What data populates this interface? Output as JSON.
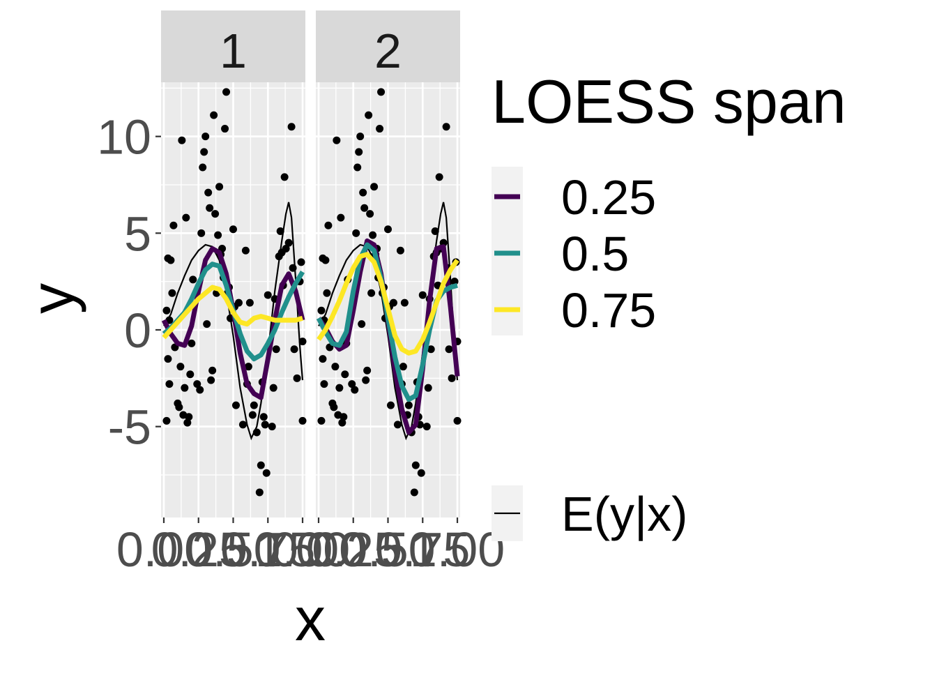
{
  "chart_data": {
    "type": "scatter",
    "title": "",
    "xlabel": "x",
    "ylabel": "y",
    "facets": [
      "1",
      "2"
    ],
    "xlim": [
      -0.02,
      1.02
    ],
    "ylim": [
      -9.7,
      12.8
    ],
    "x_ticks": [
      0,
      0.25,
      0.5,
      0.75,
      1
    ],
    "x_tick_labels": [
      "0.00",
      "0.25",
      "0.50",
      "0.75",
      "1.00"
    ],
    "y_ticks": [
      -5,
      0,
      5,
      10
    ],
    "y_tick_labels": [
      "-5",
      "0",
      "5",
      "10"
    ],
    "grid": true,
    "legend": {
      "position": "right",
      "title": "LOESS span",
      "colour_entries": [
        {
          "label": "0.25",
          "color": "#440154"
        },
        {
          "label": "0.5",
          "color": "#21908C"
        },
        {
          "label": "0.75",
          "color": "#FDE725"
        }
      ],
      "truth_entry": {
        "label": "E(y|x)",
        "color": "#000000"
      }
    },
    "points": [
      [
        0.02,
        -4.7
      ],
      [
        0.02,
        1.0
      ],
      [
        0.03,
        3.7
      ],
      [
        0.03,
        -1.5
      ],
      [
        0.04,
        0.5
      ],
      [
        0.04,
        -2.8
      ],
      [
        0.05,
        3.6
      ],
      [
        0.06,
        1.9
      ],
      [
        0.07,
        5.4
      ],
      [
        0.08,
        -0.9
      ],
      [
        0.1,
        -3.8
      ],
      [
        0.11,
        -4.0
      ],
      [
        0.12,
        -1.9
      ],
      [
        0.13,
        9.8
      ],
      [
        0.14,
        -4.4
      ],
      [
        0.15,
        -3.0
      ],
      [
        0.16,
        5.8
      ],
      [
        0.17,
        -4.8
      ],
      [
        0.18,
        -4.5
      ],
      [
        0.19,
        -2.3
      ],
      [
        0.2,
        -0.7
      ],
      [
        0.21,
        2.6
      ],
      [
        0.24,
        -2.8
      ],
      [
        0.26,
        -3.1
      ],
      [
        0.27,
        5.0
      ],
      [
        0.28,
        8.4
      ],
      [
        0.29,
        9.2
      ],
      [
        0.3,
        10.0
      ],
      [
        0.31,
        0.3
      ],
      [
        0.32,
        7.1
      ],
      [
        0.33,
        6.3
      ],
      [
        0.34,
        -2.6
      ],
      [
        0.35,
        -2.1
      ],
      [
        0.36,
        11.1
      ],
      [
        0.37,
        6.0
      ],
      [
        0.38,
        1.9
      ],
      [
        0.39,
        4.9
      ],
      [
        0.4,
        7.4
      ],
      [
        0.41,
        3.9
      ],
      [
        0.42,
        4.2
      ],
      [
        0.43,
        2.7
      ],
      [
        0.44,
        10.4
      ],
      [
        0.45,
        12.3
      ],
      [
        0.46,
        1.9
      ],
      [
        0.47,
        2.2
      ],
      [
        0.48,
        0.6
      ],
      [
        0.5,
        5.2
      ],
      [
        0.51,
        1.2
      ],
      [
        0.52,
        -3.9
      ],
      [
        0.54,
        1.4
      ],
      [
        0.57,
        -4.9
      ],
      [
        0.59,
        4.1
      ],
      [
        0.6,
        -2.8
      ],
      [
        0.61,
        -1.9
      ],
      [
        0.62,
        1.4
      ],
      [
        0.64,
        -4.4
      ],
      [
        0.65,
        -3.9
      ],
      [
        0.67,
        -5.3
      ],
      [
        0.69,
        -8.4
      ],
      [
        0.7,
        -7.0
      ],
      [
        0.71,
        -2.7
      ],
      [
        0.72,
        -4.5
      ],
      [
        0.73,
        -4.9
      ],
      [
        0.74,
        -7.4
      ],
      [
        0.75,
        1.8
      ],
      [
        0.78,
        -5.0
      ],
      [
        0.79,
        -3.0
      ],
      [
        0.8,
        1.6
      ],
      [
        0.81,
        -1.0
      ],
      [
        0.83,
        3.8
      ],
      [
        0.84,
        5.1
      ],
      [
        0.85,
        4.0
      ],
      [
        0.86,
        2.3
      ],
      [
        0.87,
        7.9
      ],
      [
        0.88,
        4.2
      ],
      [
        0.9,
        4.5
      ],
      [
        0.92,
        10.5
      ],
      [
        0.93,
        3.2
      ],
      [
        0.94,
        -1.0
      ],
      [
        0.96,
        -2.5
      ],
      [
        0.98,
        2.5
      ],
      [
        0.99,
        3.5
      ],
      [
        1.0,
        -0.6
      ],
      [
        1.0,
        -4.7
      ]
    ],
    "truth_curve": [
      [
        0,
        0.2
      ],
      [
        0.05,
        0.8
      ],
      [
        0.1,
        1.9
      ],
      [
        0.15,
        2.8
      ],
      [
        0.2,
        3.6
      ],
      [
        0.25,
        4.1
      ],
      [
        0.3,
        4.4
      ],
      [
        0.35,
        4.3
      ],
      [
        0.4,
        3.6
      ],
      [
        0.45,
        2.0
      ],
      [
        0.5,
        -0.3
      ],
      [
        0.55,
        -3.0
      ],
      [
        0.6,
        -4.9
      ],
      [
        0.63,
        -5.6
      ],
      [
        0.67,
        -5.0
      ],
      [
        0.7,
        -3.8
      ],
      [
        0.75,
        -1.2
      ],
      [
        0.8,
        2.0
      ],
      [
        0.85,
        4.6
      ],
      [
        0.88,
        6.0
      ],
      [
        0.9,
        6.6
      ],
      [
        0.92,
        5.8
      ],
      [
        0.95,
        2.6
      ],
      [
        0.98,
        -0.8
      ],
      [
        1.0,
        -2.6
      ]
    ],
    "series": [
      {
        "name": "0.25",
        "facet": "1",
        "x": [
          0,
          0.05,
          0.1,
          0.15,
          0.2,
          0.25,
          0.3,
          0.35,
          0.4,
          0.45,
          0.5,
          0.55,
          0.6,
          0.65,
          0.7,
          0.75,
          0.8,
          0.85,
          0.9,
          0.95,
          1.0
        ],
        "values": [
          0.5,
          -0.2,
          -0.7,
          -0.8,
          0.2,
          2.0,
          3.6,
          4.2,
          4.0,
          2.9,
          1.0,
          -1.2,
          -2.8,
          -3.3,
          -3.5,
          -1.5,
          0.5,
          2.3,
          2.9,
          2.0,
          0.5
        ]
      },
      {
        "name": "0.5",
        "facet": "1",
        "x": [
          0,
          0.05,
          0.1,
          0.15,
          0.2,
          0.25,
          0.3,
          0.35,
          0.4,
          0.45,
          0.5,
          0.55,
          0.6,
          0.65,
          0.7,
          0.75,
          0.8,
          0.85,
          0.9,
          0.95,
          1.0
        ],
        "values": [
          -0.2,
          0.1,
          0.5,
          0.9,
          1.6,
          2.4,
          3.1,
          3.4,
          3.3,
          2.3,
          1.0,
          -0.2,
          -1.1,
          -1.5,
          -1.3,
          -0.7,
          0.0,
          0.9,
          1.7,
          2.4,
          3.0
        ]
      },
      {
        "name": "0.75",
        "facet": "1",
        "x": [
          0,
          0.05,
          0.1,
          0.15,
          0.2,
          0.25,
          0.3,
          0.35,
          0.4,
          0.45,
          0.5,
          0.55,
          0.6,
          0.65,
          0.7,
          0.75,
          0.8,
          0.85,
          0.9,
          0.95,
          1.0
        ],
        "values": [
          -0.4,
          0.0,
          0.4,
          0.8,
          1.2,
          1.6,
          1.9,
          2.2,
          2.1,
          1.6,
          0.9,
          0.4,
          0.3,
          0.6,
          0.7,
          0.6,
          0.5,
          0.5,
          0.5,
          0.5,
          0.6
        ]
      },
      {
        "name": "0.25",
        "facet": "2",
        "x": [
          0,
          0.05,
          0.1,
          0.15,
          0.2,
          0.25,
          0.3,
          0.35,
          0.4,
          0.45,
          0.5,
          0.55,
          0.6,
          0.65,
          0.7,
          0.75,
          0.8,
          0.85,
          0.9,
          0.95,
          1.0
        ],
        "values": [
          0.6,
          0.1,
          -0.6,
          -1.0,
          -0.8,
          1.0,
          3.0,
          4.6,
          4.4,
          2.9,
          0.5,
          -2.1,
          -4.1,
          -5.3,
          -4.9,
          -2.0,
          1.5,
          4.2,
          4.3,
          1.2,
          -2.4
        ]
      },
      {
        "name": "0.5",
        "facet": "2",
        "x": [
          0,
          0.05,
          0.1,
          0.15,
          0.2,
          0.25,
          0.3,
          0.35,
          0.4,
          0.45,
          0.5,
          0.55,
          0.6,
          0.65,
          0.7,
          0.75,
          0.8,
          0.85,
          0.9,
          0.95,
          1.0
        ],
        "values": [
          0.6,
          -0.1,
          -0.7,
          -0.8,
          -0.1,
          2.0,
          3.7,
          4.4,
          4.1,
          2.7,
          0.6,
          -1.4,
          -2.9,
          -3.6,
          -3.4,
          -1.8,
          0.0,
          1.5,
          2.0,
          2.2,
          2.3
        ]
      },
      {
        "name": "0.75",
        "facet": "2",
        "x": [
          0,
          0.05,
          0.1,
          0.15,
          0.2,
          0.25,
          0.3,
          0.35,
          0.4,
          0.45,
          0.5,
          0.55,
          0.6,
          0.65,
          0.7,
          0.75,
          0.8,
          0.85,
          0.9,
          0.95,
          1.0
        ],
        "values": [
          -0.5,
          0.0,
          0.7,
          1.5,
          2.4,
          3.2,
          3.8,
          3.9,
          3.5,
          2.5,
          1.1,
          -0.3,
          -1.0,
          -1.2,
          -1.1,
          -0.5,
          0.4,
          1.4,
          2.4,
          3.1,
          3.6
        ]
      }
    ]
  }
}
